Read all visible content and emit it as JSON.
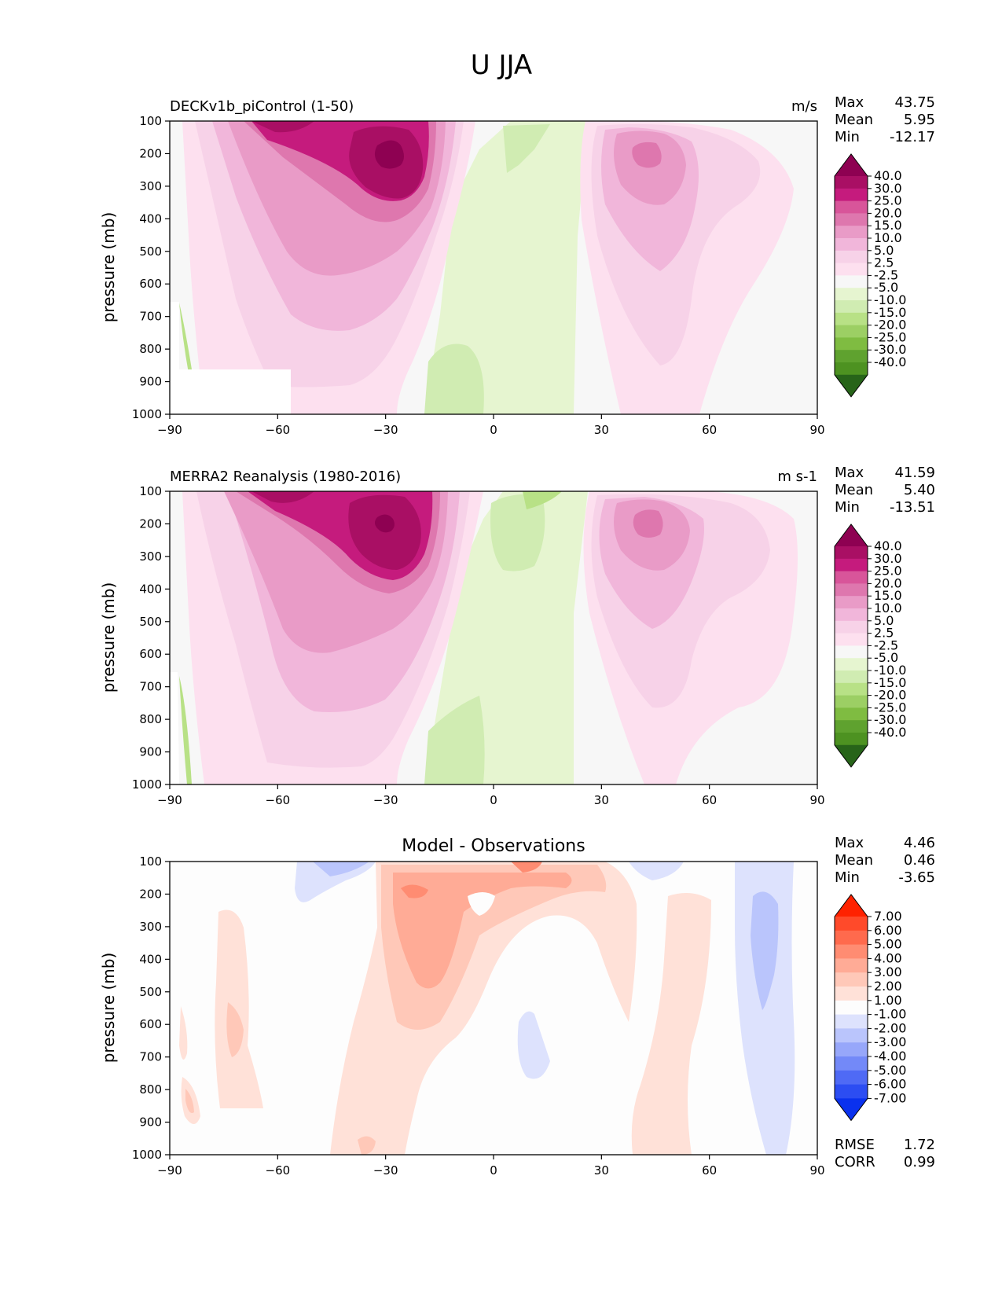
{
  "figure": {
    "title": "U JJA"
  },
  "chart_data": [
    {
      "type": "heatmap",
      "title_left": "DECKv1b_piControl (1-50)",
      "title_right": "m/s",
      "ylabel": "pressure (mb)",
      "x_ticks": [
        "−90",
        "−60",
        "−30",
        "0",
        "30",
        "60",
        "90"
      ],
      "y_ticks": [
        "100",
        "200",
        "300",
        "400",
        "500",
        "600",
        "700",
        "800",
        "900",
        "1000"
      ],
      "xlim": [
        -90,
        90
      ],
      "ylim": [
        1000,
        100
      ],
      "stats": [
        {
          "label": "Max",
          "value": "43.75"
        },
        {
          "label": "Mean",
          "value": "5.95"
        },
        {
          "label": "Min",
          "value": "-12.17"
        }
      ],
      "colorbar": {
        "levels": [
          "40.0",
          "30.0",
          "25.0",
          "20.0",
          "15.0",
          "10.0",
          "5.0",
          "2.5",
          "-2.5",
          "-5.0",
          "-10.0",
          "-15.0",
          "-20.0",
          "-25.0",
          "-30.0",
          "-40.0"
        ],
        "colors": [
          "#8e0152",
          "#a90f64",
          "#c51b7d",
          "#d8559a",
          "#de77ae",
          "#e99bc7",
          "#f1b6da",
          "#f7d2e8",
          "#fde0ef",
          "#f7f7f7",
          "#e6f5d0",
          "#d0ecb2",
          "#b8e186",
          "#9ccf64",
          "#7fbc41",
          "#5fa22f",
          "#4d9221",
          "#276419"
        ]
      },
      "features": [
        {
          "kind": "westerly-jet",
          "lat": -28,
          "p": 210,
          "peak": 43.75
        },
        {
          "kind": "westerly-jet",
          "lat": 43,
          "p": 220,
          "peak": 22
        },
        {
          "kind": "easterlies",
          "lat": 0,
          "p": 300,
          "value": -5
        }
      ]
    },
    {
      "type": "heatmap",
      "title_left": "MERRA2 Reanalysis (1980-2016)",
      "title_right": "m s-1",
      "ylabel": "pressure (mb)",
      "x_ticks": [
        "−90",
        "−60",
        "−30",
        "0",
        "30",
        "60",
        "90"
      ],
      "y_ticks": [
        "100",
        "200",
        "300",
        "400",
        "500",
        "600",
        "700",
        "800",
        "900",
        "1000"
      ],
      "xlim": [
        -90,
        90
      ],
      "ylim": [
        1000,
        100
      ],
      "stats": [
        {
          "label": "Max",
          "value": "41.59"
        },
        {
          "label": "Mean",
          "value": "5.40"
        },
        {
          "label": "Min",
          "value": "-13.51"
        }
      ],
      "colorbar": {
        "levels": [
          "40.0",
          "30.0",
          "25.0",
          "20.0",
          "15.0",
          "10.0",
          "5.0",
          "2.5",
          "-2.5",
          "-5.0",
          "-10.0",
          "-15.0",
          "-20.0",
          "-25.0",
          "-30.0",
          "-40.0"
        ],
        "colors": [
          "#8e0152",
          "#a90f64",
          "#c51b7d",
          "#d8559a",
          "#de77ae",
          "#e99bc7",
          "#f1b6da",
          "#f7d2e8",
          "#fde0ef",
          "#f7f7f7",
          "#e6f5d0",
          "#d0ecb2",
          "#b8e186",
          "#9ccf64",
          "#7fbc41",
          "#5fa22f",
          "#4d9221",
          "#276419"
        ]
      },
      "features": [
        {
          "kind": "westerly-jet",
          "lat": -30,
          "p": 200,
          "peak": 41.59
        },
        {
          "kind": "westerly-jet",
          "lat": 43,
          "p": 200,
          "peak": 22
        },
        {
          "kind": "easterlies",
          "lat": 2,
          "p": 250,
          "value": -7
        }
      ]
    },
    {
      "type": "heatmap",
      "title_center": "Model - Observations",
      "ylabel": "pressure (mb)",
      "x_ticks": [
        "−90",
        "−60",
        "−30",
        "0",
        "30",
        "60",
        "90"
      ],
      "y_ticks": [
        "100",
        "200",
        "300",
        "400",
        "500",
        "600",
        "700",
        "800",
        "900",
        "1000"
      ],
      "xlim": [
        -90,
        90
      ],
      "ylim": [
        1000,
        100
      ],
      "stats": [
        {
          "label": "Max",
          "value": "4.46"
        },
        {
          "label": "Mean",
          "value": "0.46"
        },
        {
          "label": "Min",
          "value": "-3.65"
        }
      ],
      "extra_stats": [
        {
          "label": "RMSE",
          "value": "1.72"
        },
        {
          "label": "CORR",
          "value": "0.99"
        }
      ],
      "colorbar": {
        "levels": [
          "7.00",
          "6.00",
          "5.00",
          "4.00",
          "3.00",
          "2.00",
          "1.00",
          "-1.00",
          "-2.00",
          "-3.00",
          "-4.00",
          "-5.00",
          "-6.00",
          "-7.00"
        ],
        "colors": [
          "#ff2200",
          "#ff4a2a",
          "#ff6a4d",
          "#ff8c72",
          "#ffab96",
          "#ffc8b8",
          "#ffe1d8",
          "#fdfdfd",
          "#dde2fd",
          "#bac5fc",
          "#97a7fa",
          "#7389f8",
          "#4f6af5",
          "#2c4df2",
          "#0a31ee"
        ]
      },
      "features": [
        {
          "kind": "positive-bias",
          "lat": -22,
          "p": 350,
          "value": 4
        },
        {
          "kind": "positive-bias",
          "lat": 8,
          "p": 130,
          "value": 4.46
        },
        {
          "kind": "negative-bias",
          "lat": 78,
          "p": 350,
          "value": -3.65
        },
        {
          "kind": "negative-bias",
          "lat": -40,
          "p": 120,
          "value": -2
        }
      ]
    }
  ]
}
